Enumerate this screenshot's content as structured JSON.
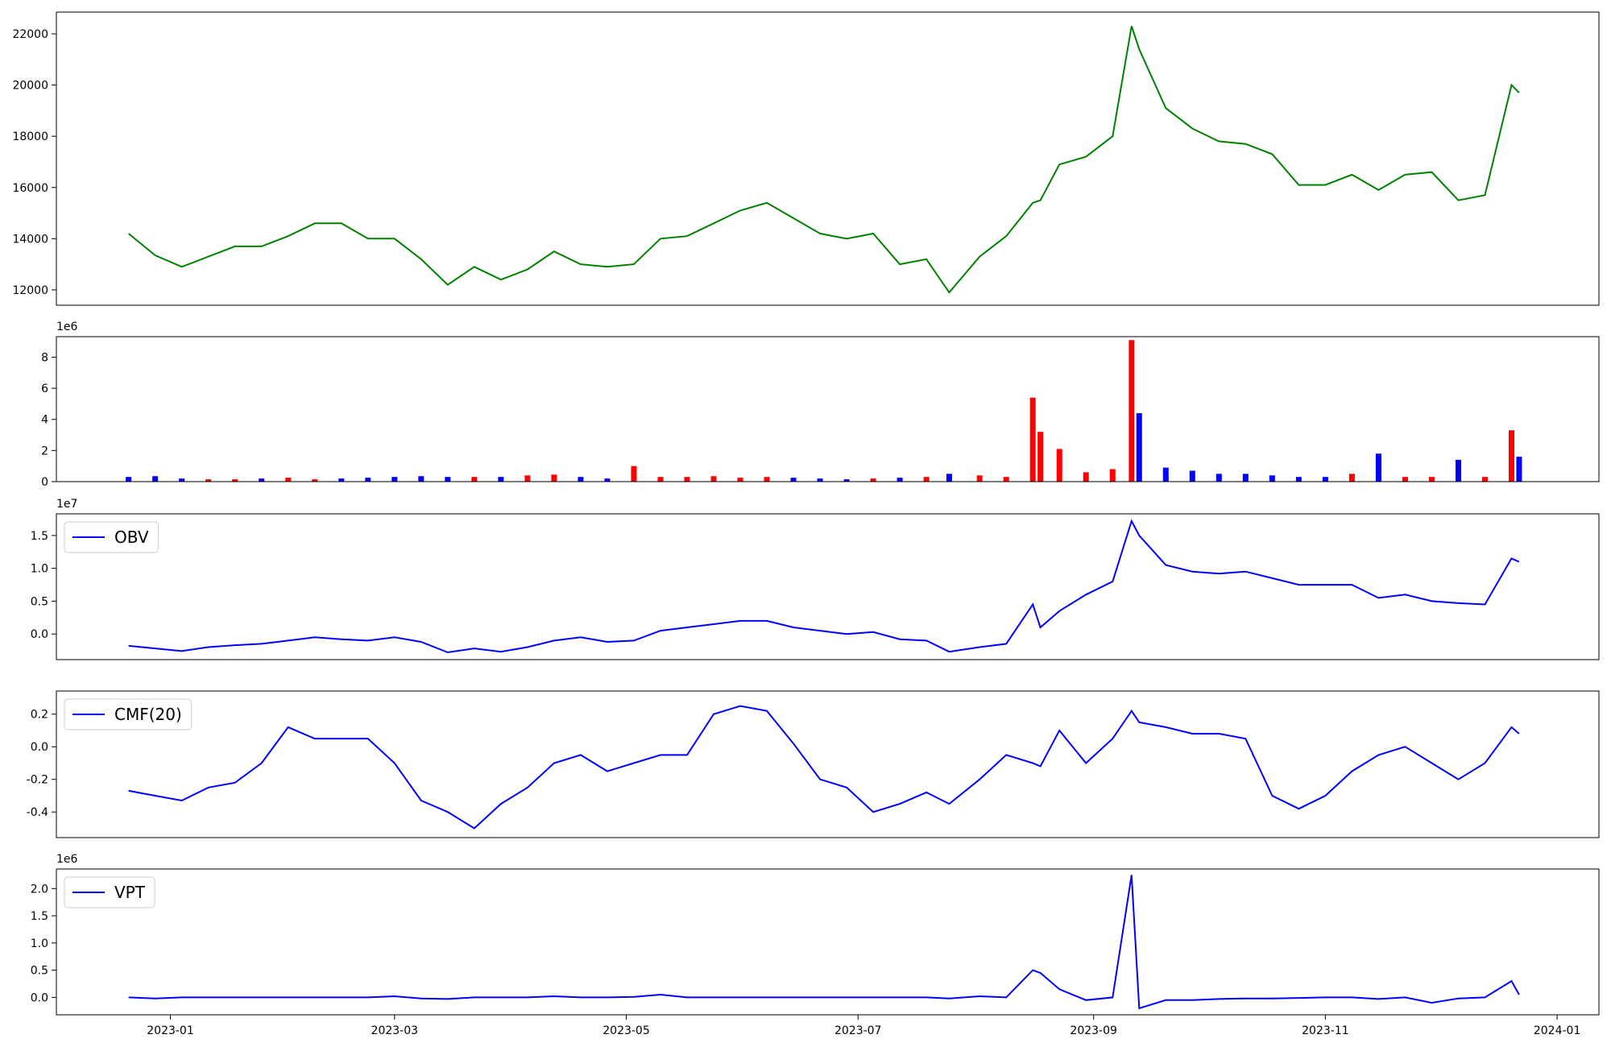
{
  "chart_data": [
    {
      "type": "line",
      "color": "green",
      "x": [
        "2022-12-21",
        "2022-12-28",
        "2023-01-04",
        "2023-01-11",
        "2023-01-18",
        "2023-01-25",
        "2023-02-01",
        "2023-02-08",
        "2023-02-15",
        "2023-02-22",
        "2023-03-01",
        "2023-03-08",
        "2023-03-15",
        "2023-03-22",
        "2023-03-29",
        "2023-04-05",
        "2023-04-12",
        "2023-04-19",
        "2023-04-26",
        "2023-05-03",
        "2023-05-10",
        "2023-05-17",
        "2023-05-24",
        "2023-05-31",
        "2023-06-07",
        "2023-06-14",
        "2023-06-21",
        "2023-06-28",
        "2023-07-05",
        "2023-07-12",
        "2023-07-19",
        "2023-07-25",
        "2023-08-02",
        "2023-08-09",
        "2023-08-16",
        "2023-08-18",
        "2023-08-23",
        "2023-08-30",
        "2023-09-06",
        "2023-09-11",
        "2023-09-13",
        "2023-09-20",
        "2023-09-27",
        "2023-10-04",
        "2023-10-11",
        "2023-10-18",
        "2023-10-25",
        "2023-11-01",
        "2023-11-08",
        "2023-11-15",
        "2023-11-22",
        "2023-11-29",
        "2023-12-06",
        "2023-12-13",
        "2023-12-20",
        "2023-12-22"
      ],
      "values": [
        14200,
        13350,
        12900,
        13300,
        13700,
        13700,
        14100,
        14600,
        14600,
        14000,
        14000,
        13200,
        12200,
        12900,
        12400,
        12800,
        13500,
        13000,
        12900,
        13000,
        14000,
        14100,
        14600,
        15100,
        15400,
        14800,
        14200,
        14000,
        14200,
        13000,
        13200,
        11900,
        13300,
        14100,
        15400,
        15500,
        16900,
        17200,
        18000,
        22300,
        21400,
        19100,
        18300,
        17800,
        17700,
        17300,
        16100,
        16100,
        16500,
        15900,
        16500,
        16600,
        15500,
        15700,
        20000,
        19700
      ],
      "xlim": [
        "2022-12-02",
        "2024-01-12"
      ],
      "ylim": [
        11400,
        22850
      ],
      "yticks": [
        12000,
        14000,
        16000,
        18000,
        20000,
        22000
      ]
    },
    {
      "type": "bar",
      "offset_text": "1e6",
      "x": [
        "2022-12-21",
        "2022-12-28",
        "2023-01-04",
        "2023-01-11",
        "2023-01-18",
        "2023-01-25",
        "2023-02-01",
        "2023-02-08",
        "2023-02-15",
        "2023-02-22",
        "2023-03-01",
        "2023-03-08",
        "2023-03-15",
        "2023-03-22",
        "2023-03-29",
        "2023-04-05",
        "2023-04-12",
        "2023-04-19",
        "2023-04-26",
        "2023-05-03",
        "2023-05-10",
        "2023-05-17",
        "2023-05-24",
        "2023-05-31",
        "2023-06-07",
        "2023-06-14",
        "2023-06-21",
        "2023-06-28",
        "2023-07-05",
        "2023-07-12",
        "2023-07-19",
        "2023-07-25",
        "2023-08-02",
        "2023-08-09",
        "2023-08-16",
        "2023-08-18",
        "2023-08-23",
        "2023-08-30",
        "2023-09-06",
        "2023-09-11",
        "2023-09-13",
        "2023-09-20",
        "2023-09-27",
        "2023-10-04",
        "2023-10-11",
        "2023-10-18",
        "2023-10-25",
        "2023-11-01",
        "2023-11-08",
        "2023-11-15",
        "2023-11-22",
        "2023-11-29",
        "2023-12-06",
        "2023-12-13",
        "2023-12-20",
        "2023-12-22"
      ],
      "values": [
        0.3,
        0.35,
        0.2,
        0.15,
        0.15,
        0.2,
        0.25,
        0.15,
        0.2,
        0.25,
        0.3,
        0.35,
        0.3,
        0.3,
        0.3,
        0.4,
        0.45,
        0.3,
        0.2,
        1.0,
        0.3,
        0.3,
        0.35,
        0.25,
        0.3,
        0.25,
        0.2,
        0.15,
        0.2,
        0.25,
        0.3,
        0.5,
        0.4,
        0.3,
        5.4,
        3.2,
        2.1,
        0.6,
        0.8,
        9.1,
        4.4,
        0.9,
        0.7,
        0.5,
        0.5,
        0.4,
        0.3,
        0.3,
        0.5,
        1.8,
        0.3,
        0.3,
        1.4,
        0.3,
        3.3,
        1.6
      ],
      "colors": [
        "blue",
        "blue",
        "blue",
        "red",
        "red",
        "blue",
        "red",
        "red",
        "blue",
        "blue",
        "blue",
        "blue",
        "blue",
        "red",
        "blue",
        "red",
        "red",
        "blue",
        "blue",
        "red",
        "red",
        "red",
        "red",
        "red",
        "red",
        "blue",
        "blue",
        "blue",
        "red",
        "blue",
        "red",
        "blue",
        "red",
        "red",
        "red",
        "red",
        "red",
        "red",
        "red",
        "red",
        "blue",
        "blue",
        "blue",
        "blue",
        "blue",
        "blue",
        "blue",
        "blue",
        "red",
        "blue",
        "red",
        "red",
        "blue",
        "red",
        "red",
        "blue"
      ],
      "xlim": [
        "2022-12-02",
        "2024-01-12"
      ],
      "ylim": [
        0,
        9.32
      ],
      "yticks": [
        0,
        2,
        4,
        6,
        8
      ]
    },
    {
      "type": "line",
      "offset_text": "1e7",
      "legend": "upper left",
      "x": [
        "2022-12-21",
        "2022-12-28",
        "2023-01-04",
        "2023-01-11",
        "2023-01-18",
        "2023-01-25",
        "2023-02-01",
        "2023-02-08",
        "2023-02-15",
        "2023-02-22",
        "2023-03-01",
        "2023-03-08",
        "2023-03-15",
        "2023-03-22",
        "2023-03-29",
        "2023-04-05",
        "2023-04-12",
        "2023-04-19",
        "2023-04-26",
        "2023-05-03",
        "2023-05-10",
        "2023-05-17",
        "2023-05-24",
        "2023-05-31",
        "2023-06-07",
        "2023-06-14",
        "2023-06-21",
        "2023-06-28",
        "2023-07-05",
        "2023-07-12",
        "2023-07-19",
        "2023-07-25",
        "2023-08-02",
        "2023-08-09",
        "2023-08-16",
        "2023-08-18",
        "2023-08-23",
        "2023-08-30",
        "2023-09-06",
        "2023-09-11",
        "2023-09-13",
        "2023-09-20",
        "2023-09-27",
        "2023-10-04",
        "2023-10-11",
        "2023-10-18",
        "2023-10-25",
        "2023-11-01",
        "2023-11-08",
        "2023-11-15",
        "2023-11-22",
        "2023-11-29",
        "2023-12-06",
        "2023-12-13",
        "2023-12-20",
        "2023-12-22"
      ],
      "series": [
        {
          "name": "OBV",
          "color": "blue",
          "values": [
            -0.18,
            -0.22,
            -0.26,
            -0.2,
            -0.17,
            -0.15,
            -0.1,
            -0.05,
            -0.08,
            -0.1,
            -0.05,
            -0.12,
            -0.28,
            -0.22,
            -0.27,
            -0.2,
            -0.1,
            -0.05,
            -0.12,
            -0.1,
            0.05,
            0.1,
            0.15,
            0.2,
            0.2,
            0.1,
            0.05,
            0.0,
            0.03,
            -0.08,
            -0.1,
            -0.27,
            -0.2,
            -0.15,
            0.45,
            0.1,
            0.35,
            0.6,
            0.8,
            1.72,
            1.5,
            1.05,
            0.95,
            0.92,
            0.95,
            0.85,
            0.75,
            0.75,
            0.75,
            0.55,
            0.6,
            0.5,
            0.47,
            0.45,
            1.15,
            1.1
          ]
        }
      ],
      "xlim": [
        "2022-12-02",
        "2024-01-12"
      ],
      "ylim": [
        -0.39,
        1.83
      ],
      "yticks": [
        {
          "value": 0,
          "label": "0.0"
        },
        0.5,
        {
          "value": 1,
          "label": "1.0"
        },
        1.5
      ]
    },
    {
      "type": "line",
      "legend": "upper left",
      "x": [
        "2022-12-21",
        "2022-12-28",
        "2023-01-04",
        "2023-01-11",
        "2023-01-18",
        "2023-01-25",
        "2023-02-01",
        "2023-02-08",
        "2023-02-15",
        "2023-02-22",
        "2023-03-01",
        "2023-03-08",
        "2023-03-15",
        "2023-03-22",
        "2023-03-29",
        "2023-04-05",
        "2023-04-12",
        "2023-04-19",
        "2023-04-26",
        "2023-05-03",
        "2023-05-10",
        "2023-05-17",
        "2023-05-24",
        "2023-05-31",
        "2023-06-07",
        "2023-06-14",
        "2023-06-21",
        "2023-06-28",
        "2023-07-05",
        "2023-07-12",
        "2023-07-19",
        "2023-07-25",
        "2023-08-02",
        "2023-08-09",
        "2023-08-16",
        "2023-08-18",
        "2023-08-23",
        "2023-08-30",
        "2023-09-06",
        "2023-09-11",
        "2023-09-13",
        "2023-09-20",
        "2023-09-27",
        "2023-10-04",
        "2023-10-11",
        "2023-10-18",
        "2023-10-25",
        "2023-11-01",
        "2023-11-08",
        "2023-11-15",
        "2023-11-22",
        "2023-11-29",
        "2023-12-06",
        "2023-12-13",
        "2023-12-20",
        "2023-12-22"
      ],
      "series": [
        {
          "name": "CMF(20)",
          "color": "blue",
          "values": [
            -0.27,
            -0.3,
            -0.33,
            -0.25,
            -0.22,
            -0.1,
            0.12,
            0.05,
            0.05,
            0.05,
            -0.1,
            -0.33,
            -0.4,
            -0.5,
            -0.35,
            -0.25,
            -0.1,
            -0.05,
            -0.15,
            -0.1,
            -0.05,
            -0.05,
            0.2,
            0.25,
            0.22,
            0.02,
            -0.2,
            -0.25,
            -0.4,
            -0.35,
            -0.28,
            -0.35,
            -0.2,
            -0.05,
            -0.1,
            -0.12,
            0.1,
            -0.1,
            0.05,
            0.22,
            0.15,
            0.12,
            0.08,
            0.08,
            0.05,
            -0.3,
            -0.38,
            -0.3,
            -0.15,
            -0.05,
            0.0,
            -0.1,
            -0.2,
            -0.1,
            0.12,
            0.08
          ]
        }
      ],
      "xlim": [
        "2022-12-02",
        "2024-01-12"
      ],
      "ylim": [
        -0.557,
        0.342
      ],
      "yticks": [
        -0.4,
        -0.2,
        {
          "value": 0,
          "label": "0.0"
        },
        0.2
      ]
    },
    {
      "type": "line",
      "offset_text": "1e6",
      "legend": "upper left",
      "x": [
        "2022-12-21",
        "2022-12-28",
        "2023-01-04",
        "2023-01-11",
        "2023-01-18",
        "2023-01-25",
        "2023-02-01",
        "2023-02-08",
        "2023-02-15",
        "2023-02-22",
        "2023-03-01",
        "2023-03-08",
        "2023-03-15",
        "2023-03-22",
        "2023-03-29",
        "2023-04-05",
        "2023-04-12",
        "2023-04-19",
        "2023-04-26",
        "2023-05-03",
        "2023-05-10",
        "2023-05-17",
        "2023-05-24",
        "2023-05-31",
        "2023-06-07",
        "2023-06-14",
        "2023-06-21",
        "2023-06-28",
        "2023-07-05",
        "2023-07-12",
        "2023-07-19",
        "2023-07-25",
        "2023-08-02",
        "2023-08-09",
        "2023-08-16",
        "2023-08-18",
        "2023-08-23",
        "2023-08-30",
        "2023-09-06",
        "2023-09-11",
        "2023-09-13",
        "2023-09-20",
        "2023-09-27",
        "2023-10-04",
        "2023-10-11",
        "2023-10-18",
        "2023-10-25",
        "2023-11-01",
        "2023-11-08",
        "2023-11-15",
        "2023-11-22",
        "2023-11-29",
        "2023-12-06",
        "2023-12-13",
        "2023-12-20",
        "2023-12-22"
      ],
      "series": [
        {
          "name": "VPT",
          "color": "blue",
          "values": [
            0,
            -0.02,
            0,
            0,
            0,
            0,
            0,
            0,
            0,
            0,
            0.02,
            -0.02,
            -0.03,
            0,
            0,
            0,
            0.02,
            0,
            0,
            0.01,
            0.05,
            0,
            0,
            0,
            0,
            0,
            0,
            0,
            0,
            0,
            0,
            -0.02,
            0.02,
            0,
            0.5,
            0.45,
            0.15,
            -0.05,
            0,
            2.25,
            -0.2,
            -0.05,
            -0.05,
            -0.03,
            -0.02,
            -0.02,
            -0.01,
            0,
            0,
            -0.03,
            0,
            -0.1,
            -0.02,
            0,
            0.3,
            0.05
          ]
        }
      ],
      "xlim": [
        "2022-12-02",
        "2024-01-12"
      ],
      "ylim": [
        -0.32,
        2.36
      ],
      "yticks": [
        {
          "value": 0,
          "label": "0.0"
        },
        0.5,
        {
          "value": 1,
          "label": "1.0"
        },
        1.5,
        {
          "value": 2,
          "label": "2.0"
        }
      ],
      "xticks": [
        {
          "value": "2023-01-01",
          "label": "2023-01"
        },
        {
          "value": "2023-03-01",
          "label": "2023-03"
        },
        {
          "value": "2023-05-01",
          "label": "2023-05"
        },
        {
          "value": "2023-07-01",
          "label": "2023-07"
        },
        {
          "value": "2023-09-01",
          "label": "2023-09"
        },
        {
          "value": "2023-11-01",
          "label": "2023-11"
        },
        {
          "value": "2024-01-01",
          "label": "2024-01"
        }
      ]
    }
  ]
}
